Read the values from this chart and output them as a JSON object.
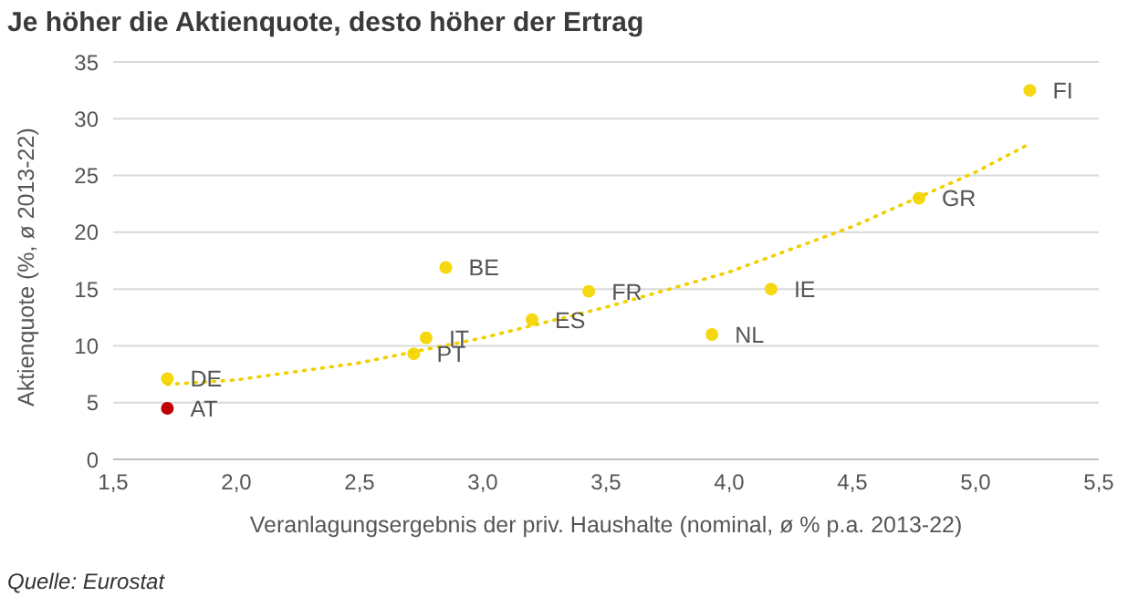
{
  "chart_data": {
    "type": "scatter",
    "title": "Je höher die Aktienquote, desto höher der Ertrag",
    "xlabel": "Veranlagungsergebnis der priv. Haushalte (nominal, ø % p.a. 2013-22)",
    "ylabel": "Aktienquote (%, ø 2013-22)",
    "annotations": [
      "Quelle: Eurostat"
    ],
    "xlim": [
      1.5,
      5.5
    ],
    "xticks": [
      {
        "value": 1.5,
        "label": "1,5"
      },
      {
        "value": 2,
        "label": "2,0"
      },
      {
        "value": 2.5,
        "label": "2,5"
      },
      {
        "value": 3,
        "label": "3,0"
      },
      {
        "value": 3.5,
        "label": "3,5"
      },
      {
        "value": 4,
        "label": "4,0"
      },
      {
        "value": 4.5,
        "label": "4,5"
      },
      {
        "value": 5,
        "label": "5,0"
      },
      {
        "value": 5.5,
        "label": "5,5"
      }
    ],
    "ylim": [
      0,
      35
    ],
    "yticks": [
      0,
      5,
      10,
      15,
      20,
      25,
      30,
      35
    ],
    "grid": "y",
    "legend": false,
    "marker": "circle",
    "series": [
      {
        "name": "DE",
        "color": "#f5d80f",
        "x": [
          1.72
        ],
        "values": [
          7.1
        ]
      },
      {
        "name": "AT",
        "color": "#c00000",
        "x": [
          1.72
        ],
        "values": [
          4.5
        ]
      },
      {
        "name": "PT",
        "color": "#f5d80f",
        "x": [
          2.72
        ],
        "values": [
          9.3
        ]
      },
      {
        "name": "IT",
        "color": "#f5d80f",
        "x": [
          2.77
        ],
        "values": [
          10.7
        ]
      },
      {
        "name": "BE",
        "color": "#f5d80f",
        "x": [
          2.85
        ],
        "values": [
          16.9
        ]
      },
      {
        "name": "ES",
        "color": "#f5d80f",
        "x": [
          3.2
        ],
        "values": [
          12.3
        ]
      },
      {
        "name": "FR",
        "color": "#f5d80f",
        "x": [
          3.43
        ],
        "values": [
          14.8
        ]
      },
      {
        "name": "NL",
        "color": "#f5d80f",
        "x": [
          3.93
        ],
        "values": [
          11.0
        ]
      },
      {
        "name": "IE",
        "color": "#f5d80f",
        "x": [
          4.17
        ],
        "values": [
          15.0
        ]
      },
      {
        "name": "GR",
        "color": "#f5d80f",
        "x": [
          4.77
        ],
        "values": [
          23.0
        ]
      },
      {
        "name": "FI",
        "color": "#f5d80f",
        "x": [
          5.22
        ],
        "values": [
          32.5
        ]
      },
      {
        "type": "line",
        "line_style": "dotted",
        "marker": "none",
        "color": "#f0d000",
        "x": [
          1.72,
          2.0,
          2.5,
          3.0,
          3.5,
          4.0,
          4.5,
          5.0,
          5.22
        ],
        "values": [
          6.6,
          7.0,
          8.5,
          10.7,
          13.4,
          16.5,
          20.5,
          25.3,
          27.8
        ]
      }
    ]
  }
}
